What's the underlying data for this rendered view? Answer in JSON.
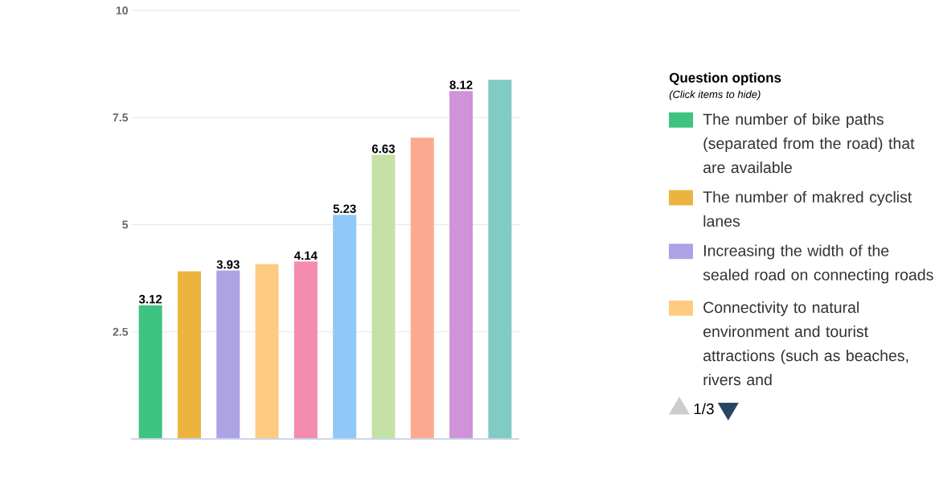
{
  "chart_data": {
    "type": "bar",
    "legend_title": "Question options",
    "annotations": [
      "(Click items to hide)",
      "1/3"
    ],
    "categories": [
      null,
      null,
      null,
      null,
      null,
      null,
      null,
      null,
      null,
      null
    ],
    "series": [
      {
        "name": "The number of bike paths (separated from the road) that are available",
        "color": "#3fc380",
        "values": [
          3.12,
          null,
          null,
          null,
          null,
          null,
          null,
          null,
          null,
          null
        ],
        "value_labels": [
          "3.12",
          null,
          null,
          null,
          null,
          null,
          null,
          null,
          null,
          null
        ]
      },
      {
        "name": "The number of makred cyclist lanes",
        "color": "#ecb43f",
        "values": [
          null,
          3.91,
          null,
          null,
          null,
          null,
          null,
          null,
          null,
          null
        ]
      },
      {
        "name": "Increasing the width of the sealed road on connecting roads",
        "color": "#aca3e5",
        "values": [
          null,
          null,
          3.93,
          null,
          null,
          null,
          null,
          null,
          null,
          null
        ],
        "value_labels": [
          null,
          null,
          "3.93",
          null,
          null,
          null,
          null,
          null,
          null,
          null
        ]
      },
      {
        "name": "Connectivity to natural environment and tourist attractions (such as beaches, rivers and",
        "color": "#fdcb82",
        "values": [
          null,
          null,
          null,
          4.08,
          null,
          null,
          null,
          null,
          null,
          null
        ]
      },
      {
        "color": "#f38cad",
        "values": [
          null,
          null,
          null,
          null,
          4.14,
          null,
          null,
          null,
          null,
          null
        ],
        "value_labels": [
          null,
          null,
          null,
          null,
          "4.14",
          null,
          null,
          null,
          null,
          null
        ]
      },
      {
        "color": "#90c9f7",
        "values": [
          null,
          null,
          null,
          null,
          null,
          5.23,
          null,
          null,
          null,
          null
        ],
        "value_labels": [
          null,
          null,
          null,
          null,
          null,
          "5.23",
          null,
          null,
          null,
          null
        ]
      },
      {
        "color": "#c5e1a5",
        "values": [
          null,
          null,
          null,
          null,
          null,
          null,
          6.63,
          null,
          null,
          null
        ],
        "value_labels": [
          null,
          null,
          null,
          null,
          null,
          null,
          "6.63",
          null,
          null,
          null
        ]
      },
      {
        "color": "#fda98f",
        "values": [
          null,
          null,
          null,
          null,
          null,
          null,
          null,
          7.03,
          null,
          null
        ]
      },
      {
        "color": "#ce93d8",
        "values": [
          null,
          null,
          null,
          null,
          null,
          null,
          null,
          null,
          8.12,
          null
        ],
        "value_labels": [
          null,
          null,
          null,
          null,
          null,
          null,
          null,
          null,
          "8.12",
          null
        ]
      },
      {
        "color": "#80cbc4",
        "values": [
          null,
          null,
          null,
          null,
          null,
          null,
          null,
          null,
          null,
          8.38
        ]
      }
    ],
    "ylim": [
      0,
      10
    ],
    "yticks": [
      2.5,
      5,
      7.5,
      10
    ],
    "grid": "y",
    "legend": "right",
    "tick_labels": "y"
  }
}
